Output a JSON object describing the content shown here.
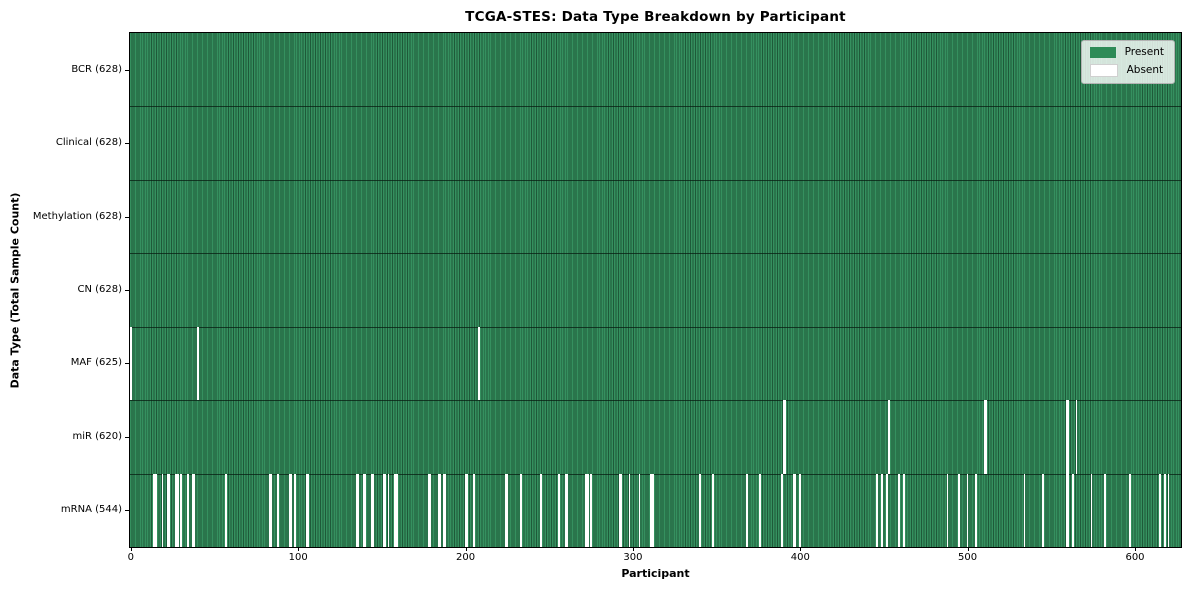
{
  "chart_data": {
    "type": "heatmap",
    "title": "TCGA-STES: Data Type Breakdown by Participant",
    "xlabel": "Participant",
    "ylabel": "Data Type (Total Sample Count)",
    "n_participants": 628,
    "xlim": [
      -0.5,
      627.5
    ],
    "x_ticks": [
      0,
      100,
      200,
      300,
      400,
      500,
      600
    ],
    "grid": false,
    "legend_position": "upper right",
    "legend": [
      {
        "label": "Present",
        "color": "#2e8b57"
      },
      {
        "label": "Absent",
        "color": "#ffffff"
      }
    ],
    "colors": {
      "present_fill": "#35905f",
      "bar_edge": "#1e5a39",
      "absent": "#ffffff",
      "row_separator": "rgba(8,30,18,0.75)"
    },
    "rows": [
      {
        "name": "bcr",
        "label": "BCR (628)",
        "present_count": 628,
        "absent_participants": []
      },
      {
        "name": "clinical",
        "label": "Clinical (628)",
        "present_count": 628,
        "absent_participants": []
      },
      {
        "name": "methylation",
        "label": "Methylation (628)",
        "present_count": 628,
        "absent_participants": []
      },
      {
        "name": "cn",
        "label": "CN (628)",
        "present_count": 628,
        "absent_participants": []
      },
      {
        "name": "maf",
        "label": "MAF (625)",
        "present_count": 625,
        "absent_participants": [
          0,
          40,
          208
        ]
      },
      {
        "name": "mir",
        "label": "miR (620)",
        "present_count": 620,
        "absent_participants": [
          390,
          391,
          453,
          510,
          511,
          559,
          560,
          565
        ]
      },
      {
        "name": "mrna",
        "label": "mRNA (544)",
        "present_count": 544,
        "absent_participants": [
          14,
          15,
          19,
          22,
          23,
          27,
          28,
          30,
          34,
          37,
          38,
          57,
          83,
          84,
          88,
          95,
          96,
          98,
          105,
          106,
          135,
          136,
          139,
          140,
          144,
          145,
          151,
          152,
          154,
          158,
          159,
          178,
          179,
          184,
          185,
          187,
          188,
          200,
          201,
          205,
          224,
          225,
          233,
          245,
          256,
          260,
          261,
          272,
          273,
          275,
          292,
          293,
          298,
          304,
          311,
          312,
          340,
          348,
          368,
          376,
          389,
          396,
          397,
          400,
          446,
          449,
          452,
          459,
          462,
          488,
          495,
          500,
          505,
          534,
          545,
          559,
          560,
          563,
          574,
          582,
          597,
          615,
          618,
          620
        ]
      }
    ]
  }
}
